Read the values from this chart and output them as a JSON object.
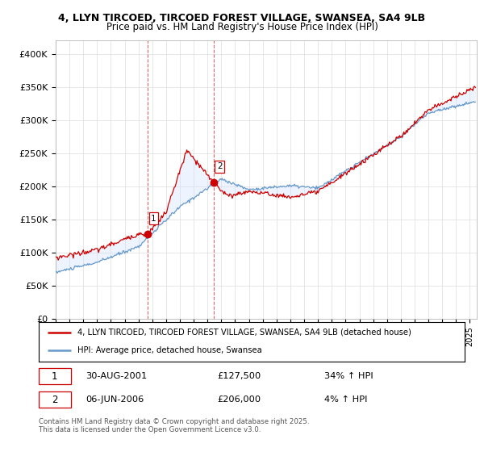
{
  "title_line1": "4, LLYN TIRCOED, TIRCOED FOREST VILLAGE, SWANSEA, SA4 9LB",
  "title_line2": "Price paid vs. HM Land Registry's House Price Index (HPI)",
  "ylim": [
    0,
    420000
  ],
  "yticks": [
    0,
    50000,
    100000,
    150000,
    200000,
    250000,
    300000,
    350000,
    400000
  ],
  "ytick_labels": [
    "£0",
    "£50K",
    "£100K",
    "£150K",
    "£200K",
    "£250K",
    "£300K",
    "£350K",
    "£400K"
  ],
  "xlim_start": 1995.0,
  "xlim_end": 2025.5,
  "transaction1": {
    "date_year": 2001.66,
    "price": 127500,
    "label": "1",
    "hpi_pct": "34% ↑ HPI",
    "date_str": "30-AUG-2001",
    "price_str": "£127,500"
  },
  "transaction2": {
    "date_year": 2006.43,
    "price": 206000,
    "label": "2",
    "hpi_pct": "4% ↑ HPI",
    "date_str": "06-JUN-2006",
    "price_str": "£206,000"
  },
  "legend_entry1": "4, LLYN TIRCOED, TIRCOED FOREST VILLAGE, SWANSEA, SA4 9LB (detached house)",
  "legend_entry2": "HPI: Average price, detached house, Swansea",
  "footnote": "Contains HM Land Registry data © Crown copyright and database right 2025.\nThis data is licensed under the Open Government Licence v3.0.",
  "line_color_red": "#cc0000",
  "line_color_blue": "#6699cc",
  "fill_color": "#cce0ff",
  "background_color": "#ffffff",
  "grid_color": "#dddddd"
}
